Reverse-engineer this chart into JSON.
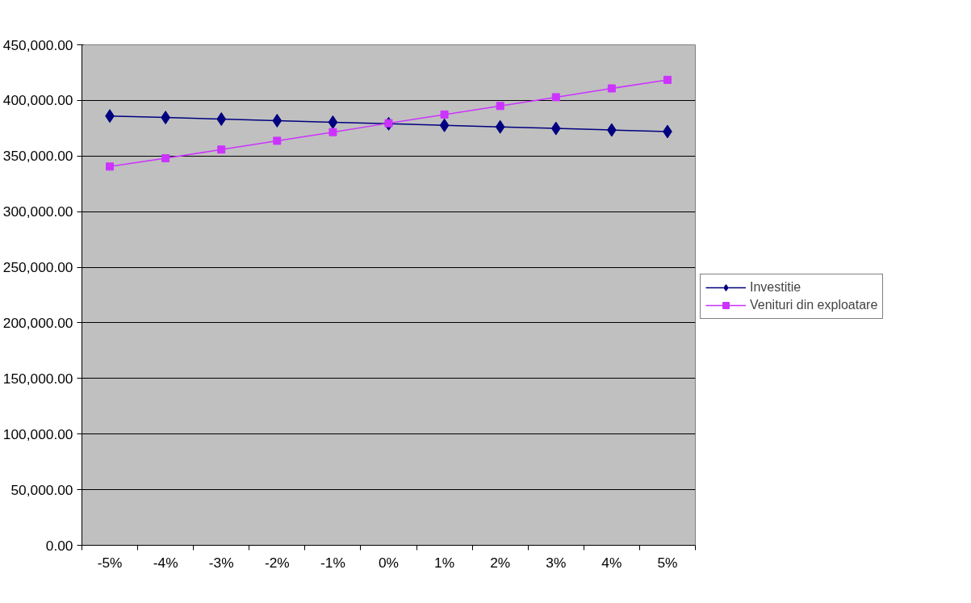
{
  "chart_data": {
    "type": "line",
    "categories": [
      "-5%",
      "-4%",
      "-3%",
      "-2%",
      "-1%",
      "0%",
      "1%",
      "2%",
      "3%",
      "4%",
      "5%"
    ],
    "series": [
      {
        "name": "Investitie",
        "color": "#000080",
        "marker": "diamond",
        "values": [
          386000,
          384600,
          383200,
          381800,
          380400,
          379000,
          377600,
          376200,
          374800,
          373400,
          372000
        ]
      },
      {
        "name": "Venituri din exploatare",
        "color": "#cc33ff",
        "marker": "square",
        "values": [
          340500,
          348000,
          355800,
          363700,
          371500,
          379500,
          387300,
          395000,
          402900,
          410800,
          418500
        ]
      }
    ],
    "ylim": [
      0,
      450000
    ],
    "yticks": [
      {
        "value": 0,
        "label": "0.00"
      },
      {
        "value": 50000,
        "label": "50,000.00"
      },
      {
        "value": 100000,
        "label": "100,000.00"
      },
      {
        "value": 150000,
        "label": "150,000.00"
      },
      {
        "value": 200000,
        "label": "200,000.00"
      },
      {
        "value": 250000,
        "label": "250,000.00"
      },
      {
        "value": 300000,
        "label": "300,000.00"
      },
      {
        "value": 350000,
        "label": "350,000.00"
      },
      {
        "value": 400000,
        "label": "400,000.00"
      },
      {
        "value": 450000,
        "label": "450,000.00"
      }
    ],
    "grid": "y",
    "legend": "right",
    "line_style": "solid"
  }
}
